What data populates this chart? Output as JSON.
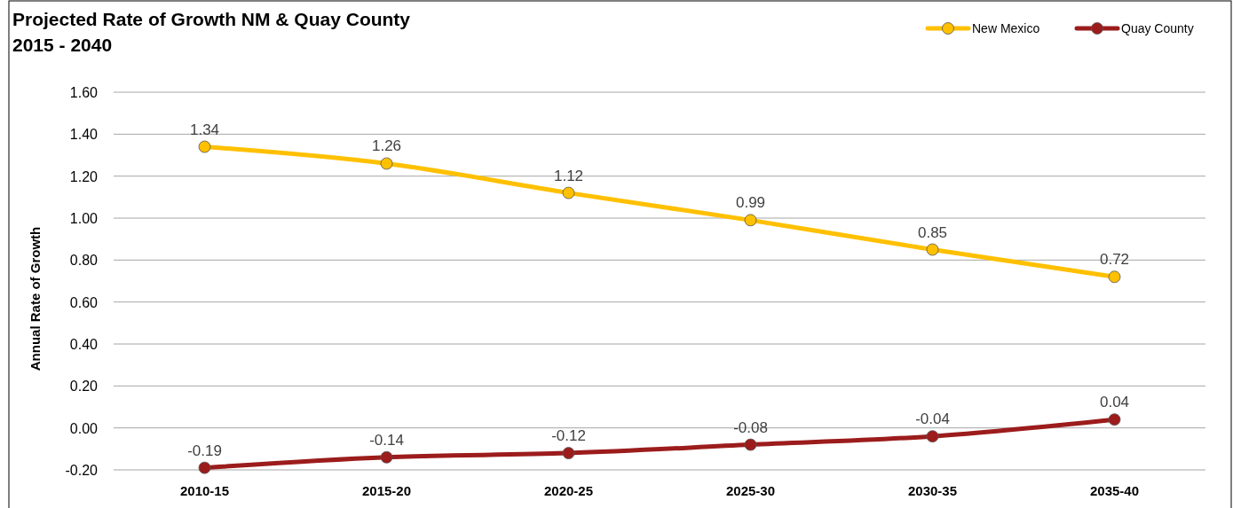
{
  "chart_data": {
    "type": "line",
    "title": "Projected Rate of Growth NM & Quay County",
    "subtitle": "2015 - 2040",
    "ylabel": "Annual Rate of Growth",
    "categories": [
      "2010-15",
      "2015-20",
      "2020-25",
      "2025-30",
      "2030-35",
      "2035-40"
    ],
    "series": [
      {
        "name": "New Mexico",
        "color": "#ffc000",
        "values": [
          1.34,
          1.26,
          1.12,
          0.99,
          0.85,
          0.72
        ]
      },
      {
        "name": "Quay County",
        "color": "#9c1c1c",
        "values": [
          -0.19,
          -0.14,
          -0.12,
          -0.08,
          -0.04,
          0.04
        ]
      }
    ],
    "ylim": [
      -0.2,
      1.6
    ],
    "yticks": [
      {
        "value": -0.2,
        "label": "-0.20"
      },
      {
        "value": 0,
        "label": "0.00"
      },
      {
        "value": 0.2,
        "label": "0.20"
      },
      {
        "value": 0.4,
        "label": "0.40"
      },
      {
        "value": 0.6,
        "label": "0.60"
      },
      {
        "value": 0.8,
        "label": "0.80"
      },
      {
        "value": 1,
        "label": "1.00"
      },
      {
        "value": 1.2,
        "label": "1.20"
      },
      {
        "value": 1.4,
        "label": "1.40"
      },
      {
        "value": 1.6,
        "label": "1.60"
      }
    ],
    "grid": "y",
    "legend": "top right",
    "marker": "circle",
    "line_style": "solid",
    "data_labels": true
  }
}
